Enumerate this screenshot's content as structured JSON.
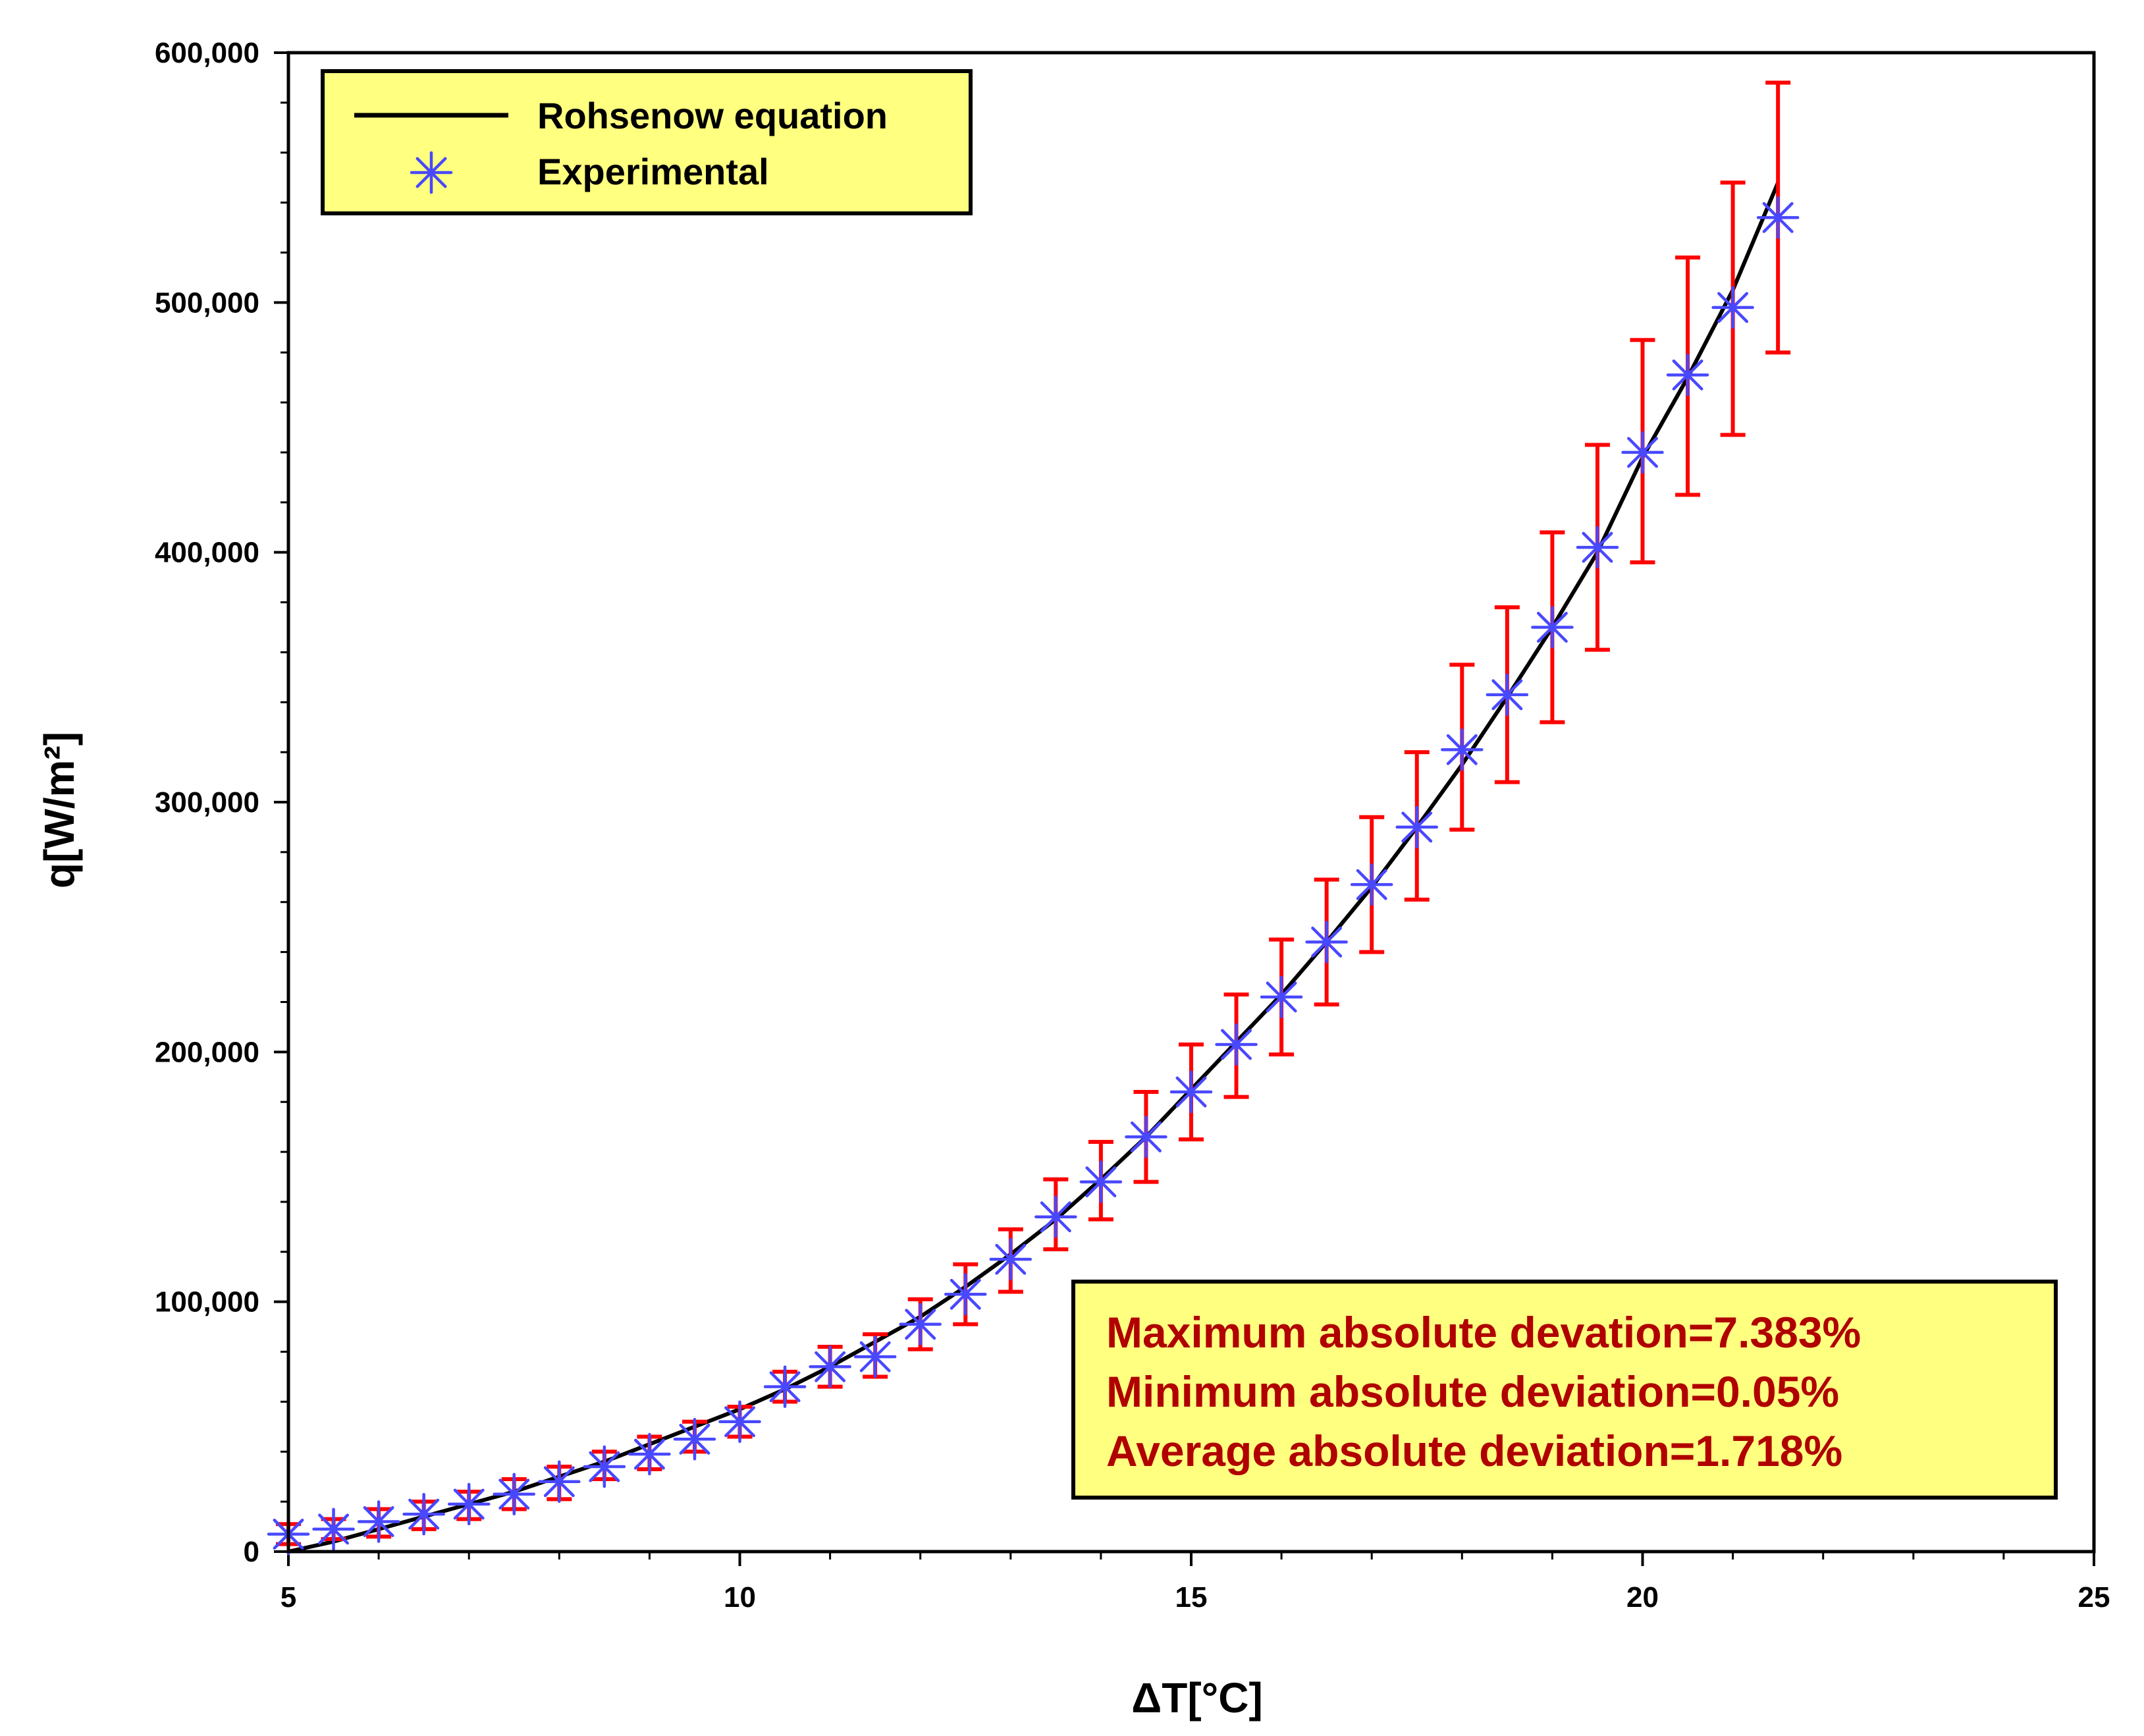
{
  "chart_data": {
    "type": "line",
    "xlabel": "ΔT[°C]",
    "ylabel": "q[W/m²]",
    "xlim": [
      5,
      25
    ],
    "ylim": [
      0,
      600000
    ],
    "x_ticks": [
      5,
      10,
      15,
      20,
      25
    ],
    "x_tick_labels": [
      "5",
      "10",
      "15",
      "20",
      "25"
    ],
    "y_ticks": [
      0,
      100000,
      200000,
      300000,
      400000,
      500000,
      600000
    ],
    "y_tick_labels": [
      "0",
      "100,000",
      "200,000",
      "300,000",
      "400,000",
      "500,000",
      "600,000"
    ],
    "legend": {
      "placement": "top-left",
      "background": "#ffff80",
      "entries": [
        "Rohsenow equation",
        "Experimental"
      ]
    },
    "series": [
      {
        "name": "Rohsenow equation",
        "kind": "line",
        "color": "#000000",
        "x": [
          5,
          5.5,
          6,
          6.5,
          7,
          7.5,
          8,
          8.5,
          9,
          9.5,
          10,
          10.5,
          11,
          11.5,
          12,
          12.5,
          13,
          13.5,
          14,
          14.5,
          15,
          15.5,
          16,
          16.5,
          17,
          17.5,
          18,
          18.5,
          19,
          19.5,
          20,
          20.5,
          21,
          21.5
        ],
        "values": [
          0,
          4000,
          9000,
          14000,
          19000,
          24000,
          30000,
          36000,
          43000,
          50000,
          57000,
          65000,
          74000,
          84000,
          94000,
          106000,
          119000,
          133000,
          149000,
          166000,
          185000,
          204000,
          223000,
          244000,
          266000,
          290000,
          315000,
          342000,
          370000,
          400000,
          438000,
          470000,
          505000,
          548000
        ]
      },
      {
        "name": "Experimental",
        "kind": "scatter",
        "marker": "asterisk",
        "color": "#4848ff",
        "errorbar_color": "#ff0000",
        "x": [
          5,
          5.5,
          6,
          6.5,
          7,
          7.5,
          8,
          8.5,
          9,
          9.5,
          10,
          10.5,
          11,
          11.5,
          12,
          12.5,
          13,
          13.5,
          14,
          14.5,
          15,
          15.5,
          16,
          16.5,
          17,
          17.5,
          18,
          18.5,
          19,
          19.5,
          20,
          20.5,
          21,
          21.5
        ],
        "values": [
          7000,
          9000,
          12000,
          15000,
          19000,
          23000,
          28000,
          34000,
          39000,
          45000,
          52000,
          66000,
          74000,
          78000,
          91000,
          103000,
          117000,
          134000,
          148000,
          166000,
          184000,
          203000,
          222000,
          244000,
          267000,
          290000,
          321000,
          343000,
          370000,
          402000,
          440000,
          471000,
          498000,
          534000
        ],
        "err_low": [
          3000,
          5000,
          6000,
          9000,
          13000,
          17000,
          21000,
          29000,
          33000,
          40000,
          46000,
          60000,
          66000,
          70000,
          81000,
          91000,
          104000,
          121000,
          133000,
          148000,
          165000,
          182000,
          199000,
          219000,
          240000,
          261000,
          289000,
          308000,
          332000,
          361000,
          396000,
          423000,
          447000,
          480000
        ],
        "err_high": [
          11000,
          13000,
          17000,
          20000,
          24000,
          29000,
          34000,
          40000,
          46000,
          52000,
          58000,
          72000,
          82000,
          87000,
          101000,
          115000,
          129000,
          149000,
          164000,
          184000,
          203000,
          223000,
          245000,
          269000,
          294000,
          320000,
          355000,
          378000,
          408000,
          443000,
          485000,
          518000,
          548000,
          588000
        ]
      }
    ],
    "annotation": {
      "placement": "bottom-right",
      "background": "#ffff80",
      "text_color": "#b00000",
      "lines": [
        "Maximum  absolute devation=7.383%",
        "Minimum absolute deviation=0.05%",
        "Average absolute deviation=1.718%"
      ]
    }
  }
}
